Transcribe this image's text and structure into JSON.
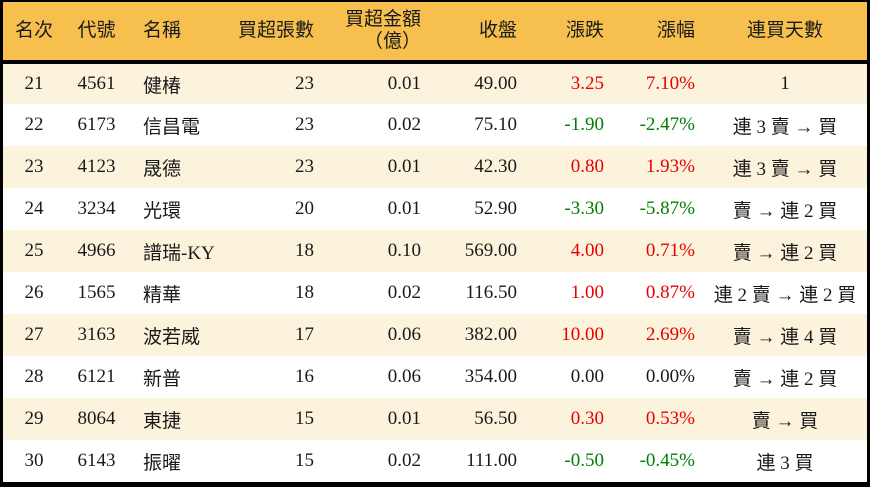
{
  "colors": {
    "header_bg": "#F7C04E",
    "row_alt_bg": "#FCF3DC",
    "up_red": "#EA0000",
    "down_green": "#008000",
    "text": "#1a1a1a",
    "border": "#000000"
  },
  "chart_data": {
    "type": "table",
    "columns": {
      "rank": "名次",
      "code": "代號",
      "name": "名稱",
      "volume": "買超張數",
      "amount_line1": "買超金額",
      "amount_line2": "（億）",
      "close": "收盤",
      "change": "漲跌",
      "pct": "漲幅",
      "streak": "連買天數"
    },
    "rows": [
      {
        "rank": "21",
        "code": "4561",
        "name": "健椿",
        "volume": "23",
        "amount": "0.01",
        "close": "49.00",
        "change": "3.25",
        "pct": "7.10%",
        "streak": "1",
        "trend": "up"
      },
      {
        "rank": "22",
        "code": "6173",
        "name": "信昌電",
        "volume": "23",
        "amount": "0.02",
        "close": "75.10",
        "change": "-1.90",
        "pct": "-2.47%",
        "streak": "連 3 賣 → 買",
        "trend": "down"
      },
      {
        "rank": "23",
        "code": "4123",
        "name": "晟德",
        "volume": "23",
        "amount": "0.01",
        "close": "42.30",
        "change": "0.80",
        "pct": "1.93%",
        "streak": "連 3 賣 → 買",
        "trend": "up"
      },
      {
        "rank": "24",
        "code": "3234",
        "name": "光環",
        "volume": "20",
        "amount": "0.01",
        "close": "52.90",
        "change": "-3.30",
        "pct": "-5.87%",
        "streak": "賣 → 連 2 買",
        "trend": "down"
      },
      {
        "rank": "25",
        "code": "4966",
        "name": "譜瑞-KY",
        "volume": "18",
        "amount": "0.10",
        "close": "569.00",
        "change": "4.00",
        "pct": "0.71%",
        "streak": "賣 → 連 2 買",
        "trend": "up"
      },
      {
        "rank": "26",
        "code": "1565",
        "name": "精華",
        "volume": "18",
        "amount": "0.02",
        "close": "116.50",
        "change": "1.00",
        "pct": "0.87%",
        "streak": "連 2 賣 → 連 2 買",
        "trend": "up"
      },
      {
        "rank": "27",
        "code": "3163",
        "name": "波若威",
        "volume": "17",
        "amount": "0.06",
        "close": "382.00",
        "change": "10.00",
        "pct": "2.69%",
        "streak": "賣 → 連 4 買",
        "trend": "up"
      },
      {
        "rank": "28",
        "code": "6121",
        "name": "新普",
        "volume": "16",
        "amount": "0.06",
        "close": "354.00",
        "change": "0.00",
        "pct": "0.00%",
        "streak": "賣 → 連 2 買",
        "trend": "flat"
      },
      {
        "rank": "29",
        "code": "8064",
        "name": "東捷",
        "volume": "15",
        "amount": "0.01",
        "close": "56.50",
        "change": "0.30",
        "pct": "0.53%",
        "streak": "賣 → 買",
        "trend": "up"
      },
      {
        "rank": "30",
        "code": "6143",
        "name": "振曜",
        "volume": "15",
        "amount": "0.02",
        "close": "111.00",
        "change": "-0.50",
        "pct": "-0.45%",
        "streak": "連 3 買",
        "trend": "down"
      }
    ]
  }
}
